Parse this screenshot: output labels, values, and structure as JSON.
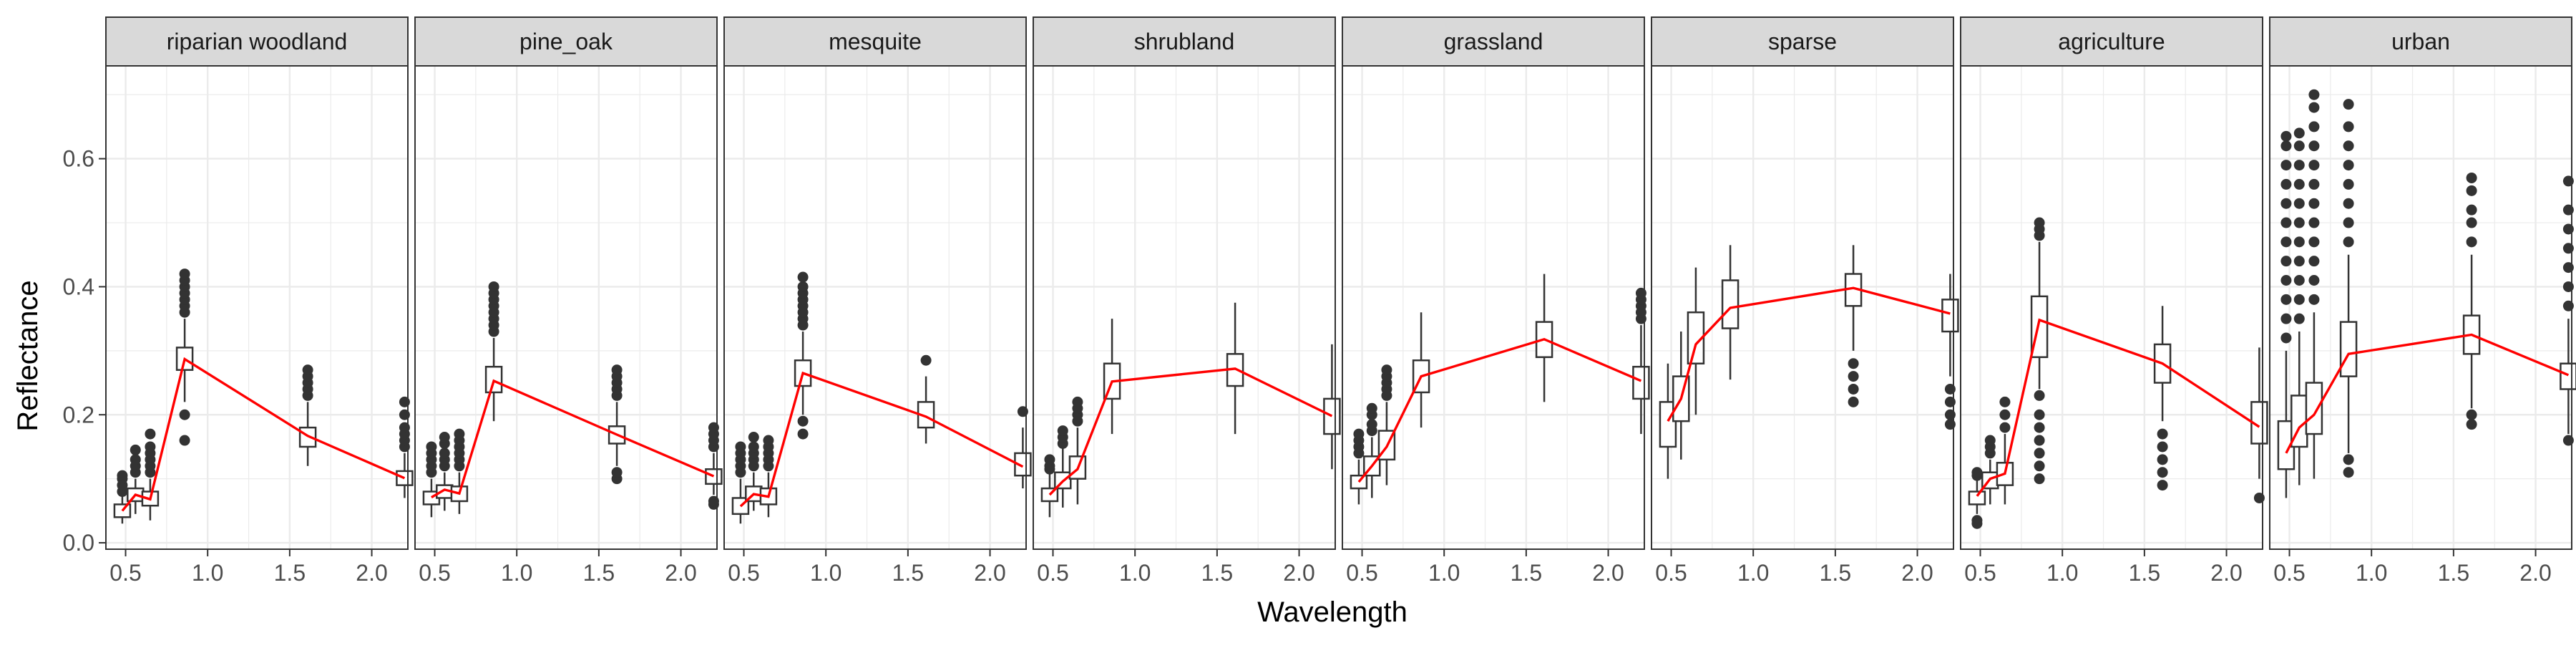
{
  "chart_data": {
    "type": "box+line (faceted)",
    "xlabel": "Wavelength",
    "ylabel": "Reflectance",
    "xlim": [
      0.38,
      2.22
    ],
    "ylim": [
      -0.01,
      0.745
    ],
    "x_ticks": [
      0.5,
      1.0,
      1.5,
      2.0
    ],
    "x_tick_labels": [
      "0.5",
      "1.0",
      "1.5",
      "2.0"
    ],
    "y_ticks": [
      0.0,
      0.2,
      0.4,
      0.6
    ],
    "y_tick_labels": [
      "0.0",
      "0.2",
      "0.4",
      "0.6"
    ],
    "grid": true,
    "wavelengths": [
      0.48,
      0.56,
      0.65,
      0.86,
      1.61,
      2.2
    ],
    "colors": {
      "median_line": "#ff0000",
      "box_stroke": "#333333",
      "outlier": "#333333",
      "strip_fill": "#d9d9d9",
      "panel_border": "#333333",
      "grid": "#ebebeb"
    },
    "panels": [
      {
        "label": "riparian woodland",
        "medians": [
          0.05,
          0.075,
          0.068,
          0.287,
          0.167,
          0.101
        ],
        "boxes": [
          {
            "x": 0.48,
            "q1": 0.04,
            "q3": 0.06,
            "lo": 0.03,
            "hi": 0.075,
            "outliers": [
              0.08,
              0.09,
              0.1,
              0.105
            ]
          },
          {
            "x": 0.56,
            "q1": 0.065,
            "q3": 0.085,
            "lo": 0.045,
            "hi": 0.1,
            "outliers": [
              0.11,
              0.12,
              0.13,
              0.145
            ]
          },
          {
            "x": 0.65,
            "q1": 0.058,
            "q3": 0.08,
            "lo": 0.035,
            "hi": 0.1,
            "outliers": [
              0.11,
              0.12,
              0.13,
              0.14,
              0.15,
              0.17
            ]
          },
          {
            "x": 0.86,
            "q1": 0.27,
            "q3": 0.305,
            "lo": 0.22,
            "hi": 0.35,
            "outliers": [
              0.36,
              0.37,
              0.38,
              0.39,
              0.4,
              0.41,
              0.42,
              0.2,
              0.16
            ]
          },
          {
            "x": 1.61,
            "q1": 0.15,
            "q3": 0.18,
            "lo": 0.12,
            "hi": 0.22,
            "outliers": [
              0.23,
              0.24,
              0.25,
              0.26,
              0.27
            ]
          },
          {
            "x": 2.2,
            "q1": 0.09,
            "q3": 0.112,
            "lo": 0.07,
            "hi": 0.14,
            "outliers": [
              0.15,
              0.16,
              0.17,
              0.18,
              0.2,
              0.22
            ]
          }
        ]
      },
      {
        "label": "pine_oak",
        "medians": [
          0.071,
          0.083,
          0.077,
          0.253,
          0.169,
          0.104
        ],
        "boxes": [
          {
            "x": 0.48,
            "q1": 0.06,
            "q3": 0.08,
            "lo": 0.04,
            "hi": 0.1,
            "outliers": [
              0.11,
              0.12,
              0.13,
              0.14,
              0.15
            ]
          },
          {
            "x": 0.56,
            "q1": 0.07,
            "q3": 0.09,
            "lo": 0.05,
            "hi": 0.11,
            "outliers": [
              0.12,
              0.13,
              0.14,
              0.155,
              0.165
            ]
          },
          {
            "x": 0.65,
            "q1": 0.065,
            "q3": 0.088,
            "lo": 0.045,
            "hi": 0.11,
            "outliers": [
              0.12,
              0.13,
              0.14,
              0.15,
              0.16,
              0.17
            ]
          },
          {
            "x": 0.86,
            "q1": 0.235,
            "q3": 0.275,
            "lo": 0.19,
            "hi": 0.32,
            "outliers": [
              0.33,
              0.34,
              0.35,
              0.36,
              0.37,
              0.38,
              0.39,
              0.4
            ]
          },
          {
            "x": 1.61,
            "q1": 0.155,
            "q3": 0.182,
            "lo": 0.12,
            "hi": 0.22,
            "outliers": [
              0.23,
              0.24,
              0.25,
              0.26,
              0.27,
              0.1,
              0.11
            ]
          },
          {
            "x": 2.2,
            "q1": 0.092,
            "q3": 0.115,
            "lo": 0.075,
            "hi": 0.14,
            "outliers": [
              0.15,
              0.16,
              0.17,
              0.18,
              0.06,
              0.065
            ]
          }
        ]
      },
      {
        "label": "mesquite",
        "medians": [
          0.057,
          0.076,
          0.072,
          0.265,
          0.197,
          0.119
        ],
        "boxes": [
          {
            "x": 0.48,
            "q1": 0.045,
            "q3": 0.07,
            "lo": 0.03,
            "hi": 0.1,
            "outliers": [
              0.11,
              0.12,
              0.13,
              0.14,
              0.15
            ]
          },
          {
            "x": 0.56,
            "q1": 0.065,
            "q3": 0.088,
            "lo": 0.05,
            "hi": 0.11,
            "outliers": [
              0.12,
              0.13,
              0.14,
              0.15,
              0.165
            ]
          },
          {
            "x": 0.65,
            "q1": 0.06,
            "q3": 0.085,
            "lo": 0.04,
            "hi": 0.11,
            "outliers": [
              0.12,
              0.13,
              0.14,
              0.15,
              0.16
            ]
          },
          {
            "x": 0.86,
            "q1": 0.245,
            "q3": 0.285,
            "lo": 0.2,
            "hi": 0.33,
            "outliers": [
              0.34,
              0.35,
              0.36,
              0.37,
              0.38,
              0.39,
              0.4,
              0.415,
              0.19,
              0.17
            ]
          },
          {
            "x": 1.61,
            "q1": 0.18,
            "q3": 0.22,
            "lo": 0.155,
            "hi": 0.26,
            "outliers": [
              0.285
            ]
          },
          {
            "x": 2.2,
            "q1": 0.105,
            "q3": 0.14,
            "lo": 0.085,
            "hi": 0.18,
            "outliers": [
              0.205
            ]
          }
        ]
      },
      {
        "label": "shrubland",
        "medians": [
          0.075,
          0.096,
          0.115,
          0.252,
          0.272,
          0.198
        ],
        "boxes": [
          {
            "x": 0.48,
            "q1": 0.065,
            "q3": 0.085,
            "lo": 0.04,
            "hi": 0.11,
            "outliers": [
              0.115,
              0.12,
              0.13
            ]
          },
          {
            "x": 0.56,
            "q1": 0.085,
            "q3": 0.11,
            "lo": 0.055,
            "hi": 0.15,
            "outliers": [
              0.155,
              0.165,
              0.175
            ]
          },
          {
            "x": 0.65,
            "q1": 0.1,
            "q3": 0.135,
            "lo": 0.06,
            "hi": 0.18,
            "outliers": [
              0.19,
              0.2,
              0.21,
              0.22
            ]
          },
          {
            "x": 0.86,
            "q1": 0.225,
            "q3": 0.28,
            "lo": 0.17,
            "hi": 0.35,
            "outliers": []
          },
          {
            "x": 1.61,
            "q1": 0.245,
            "q3": 0.295,
            "lo": 0.17,
            "hi": 0.375,
            "outliers": []
          },
          {
            "x": 2.2,
            "q1": 0.17,
            "q3": 0.225,
            "lo": 0.115,
            "hi": 0.31,
            "outliers": []
          }
        ]
      },
      {
        "label": "grassland",
        "medians": [
          0.095,
          0.12,
          0.15,
          0.26,
          0.318,
          0.253
        ],
        "boxes": [
          {
            "x": 0.48,
            "q1": 0.085,
            "q3": 0.105,
            "lo": 0.06,
            "hi": 0.13,
            "outliers": [
              0.14,
              0.15,
              0.16,
              0.17
            ]
          },
          {
            "x": 0.56,
            "q1": 0.105,
            "q3": 0.135,
            "lo": 0.07,
            "hi": 0.165,
            "outliers": [
              0.175,
              0.185,
              0.2,
              0.21
            ]
          },
          {
            "x": 0.65,
            "q1": 0.13,
            "q3": 0.175,
            "lo": 0.09,
            "hi": 0.22,
            "outliers": [
              0.23,
              0.24,
              0.25,
              0.26,
              0.27
            ]
          },
          {
            "x": 0.86,
            "q1": 0.235,
            "q3": 0.285,
            "lo": 0.18,
            "hi": 0.36,
            "outliers": []
          },
          {
            "x": 1.61,
            "q1": 0.29,
            "q3": 0.345,
            "lo": 0.22,
            "hi": 0.42,
            "outliers": []
          },
          {
            "x": 2.2,
            "q1": 0.225,
            "q3": 0.275,
            "lo": 0.17,
            "hi": 0.34,
            "outliers": [
              0.35,
              0.36,
              0.37,
              0.38,
              0.39
            ]
          }
        ]
      },
      {
        "label": "sparse",
        "medians": [
          0.19,
          0.225,
          0.31,
          0.367,
          0.398,
          0.358
        ],
        "boxes": [
          {
            "x": 0.48,
            "q1": 0.15,
            "q3": 0.22,
            "lo": 0.1,
            "hi": 0.28,
            "outliers": []
          },
          {
            "x": 0.56,
            "q1": 0.19,
            "q3": 0.26,
            "lo": 0.13,
            "hi": 0.33,
            "outliers": []
          },
          {
            "x": 0.65,
            "q1": 0.28,
            "q3": 0.36,
            "lo": 0.2,
            "hi": 0.43,
            "outliers": []
          },
          {
            "x": 0.86,
            "q1": 0.335,
            "q3": 0.41,
            "lo": 0.255,
            "hi": 0.465,
            "outliers": []
          },
          {
            "x": 1.61,
            "q1": 0.37,
            "q3": 0.42,
            "lo": 0.3,
            "hi": 0.465,
            "outliers": [
              0.28,
              0.26,
              0.24,
              0.22
            ]
          },
          {
            "x": 2.2,
            "q1": 0.33,
            "q3": 0.38,
            "lo": 0.26,
            "hi": 0.42,
            "outliers": [
              0.24,
              0.22,
              0.2,
              0.185
            ]
          }
        ]
      },
      {
        "label": "agriculture",
        "medians": [
          0.073,
          0.1,
          0.108,
          0.348,
          0.28,
          0.181
        ],
        "boxes": [
          {
            "x": 0.48,
            "q1": 0.06,
            "q3": 0.08,
            "lo": 0.045,
            "hi": 0.1,
            "outliers": [
              0.105,
              0.11,
              0.035,
              0.03
            ]
          },
          {
            "x": 0.56,
            "q1": 0.085,
            "q3": 0.11,
            "lo": 0.06,
            "hi": 0.13,
            "outliers": [
              0.14,
              0.15,
              0.16
            ]
          },
          {
            "x": 0.65,
            "q1": 0.09,
            "q3": 0.125,
            "lo": 0.06,
            "hi": 0.17,
            "outliers": [
              0.18,
              0.2,
              0.22
            ]
          },
          {
            "x": 0.86,
            "q1": 0.29,
            "q3": 0.385,
            "lo": 0.24,
            "hi": 0.47,
            "outliers": [
              0.48,
              0.49,
              0.5,
              0.23,
              0.2,
              0.18,
              0.16,
              0.14,
              0.12,
              0.1
            ]
          },
          {
            "x": 1.61,
            "q1": 0.25,
            "q3": 0.31,
            "lo": 0.19,
            "hi": 0.37,
            "outliers": [
              0.17,
              0.15,
              0.13,
              0.11,
              0.09
            ]
          },
          {
            "x": 2.2,
            "q1": 0.155,
            "q3": 0.22,
            "lo": 0.1,
            "hi": 0.305,
            "outliers": [
              0.07
            ]
          }
        ]
      },
      {
        "label": "urban",
        "medians": [
          0.14,
          0.18,
          0.2,
          0.295,
          0.325,
          0.262
        ],
        "boxes": [
          {
            "x": 0.48,
            "q1": 0.115,
            "q3": 0.19,
            "lo": 0.07,
            "hi": 0.3,
            "outliers": [
              0.32,
              0.35,
              0.38,
              0.41,
              0.44,
              0.47,
              0.5,
              0.53,
              0.56,
              0.59,
              0.62,
              0.635
            ]
          },
          {
            "x": 0.56,
            "q1": 0.15,
            "q3": 0.23,
            "lo": 0.09,
            "hi": 0.33,
            "outliers": [
              0.35,
              0.38,
              0.41,
              0.44,
              0.47,
              0.5,
              0.53,
              0.56,
              0.59,
              0.62,
              0.64
            ]
          },
          {
            "x": 0.65,
            "q1": 0.17,
            "q3": 0.25,
            "lo": 0.1,
            "hi": 0.36,
            "outliers": [
              0.38,
              0.41,
              0.44,
              0.47,
              0.5,
              0.53,
              0.56,
              0.59,
              0.62,
              0.65,
              0.68,
              0.7
            ]
          },
          {
            "x": 0.86,
            "q1": 0.26,
            "q3": 0.345,
            "lo": 0.14,
            "hi": 0.45,
            "outliers": [
              0.47,
              0.5,
              0.53,
              0.56,
              0.59,
              0.62,
              0.65,
              0.685,
              0.13,
              0.11
            ]
          },
          {
            "x": 1.61,
            "q1": 0.295,
            "q3": 0.355,
            "lo": 0.21,
            "hi": 0.45,
            "outliers": [
              0.47,
              0.5,
              0.52,
              0.55,
              0.57,
              0.2,
              0.185
            ]
          },
          {
            "x": 2.2,
            "q1": 0.24,
            "q3": 0.28,
            "lo": 0.17,
            "hi": 0.35,
            "outliers": [
              0.37,
              0.4,
              0.43,
              0.46,
              0.49,
              0.52,
              0.565,
              0.16
            ]
          }
        ]
      }
    ]
  }
}
